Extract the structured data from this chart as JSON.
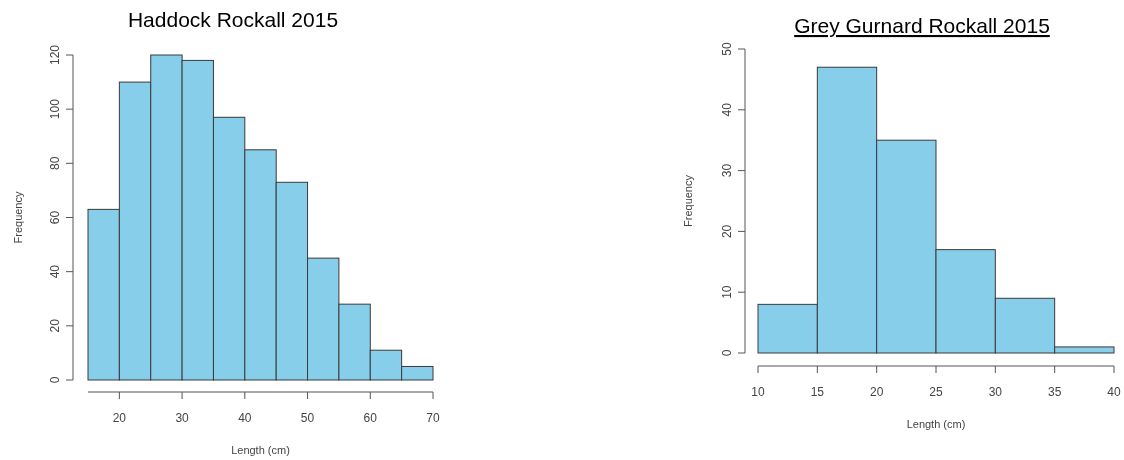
{
  "chart_data": [
    {
      "type": "histogram",
      "title": "Haddock Rockall 2015",
      "xlabel": "Length (cm)",
      "ylabel": "Frequency",
      "bins": [
        15,
        20,
        25,
        30,
        35,
        40,
        45,
        50,
        55,
        60,
        65,
        70
      ],
      "values": [
        63,
        110,
        120,
        118,
        97,
        85,
        73,
        45,
        28,
        11,
        5
      ],
      "color": "#87ceeb",
      "xlim": [
        15,
        70
      ],
      "ylim": [
        0,
        120
      ],
      "xticks": [
        20,
        30,
        40,
        50,
        60,
        70
      ],
      "yticks": [
        0,
        20,
        40,
        60,
        80,
        100,
        120
      ]
    },
    {
      "type": "histogram",
      "title": "Grey Gurnard Rockall 2015",
      "xlabel": "Length (cm)",
      "ylabel": "Frequency",
      "bins": [
        10,
        15,
        20,
        25,
        30,
        35,
        40
      ],
      "values": [
        8,
        47,
        35,
        17,
        9,
        1
      ],
      "color": "#87ceeb",
      "xlim": [
        10,
        40
      ],
      "ylim": [
        0,
        50
      ],
      "xticks": [
        10,
        15,
        20,
        25,
        30,
        35,
        40
      ],
      "yticks": [
        0,
        10,
        20,
        30,
        40,
        50
      ]
    }
  ]
}
